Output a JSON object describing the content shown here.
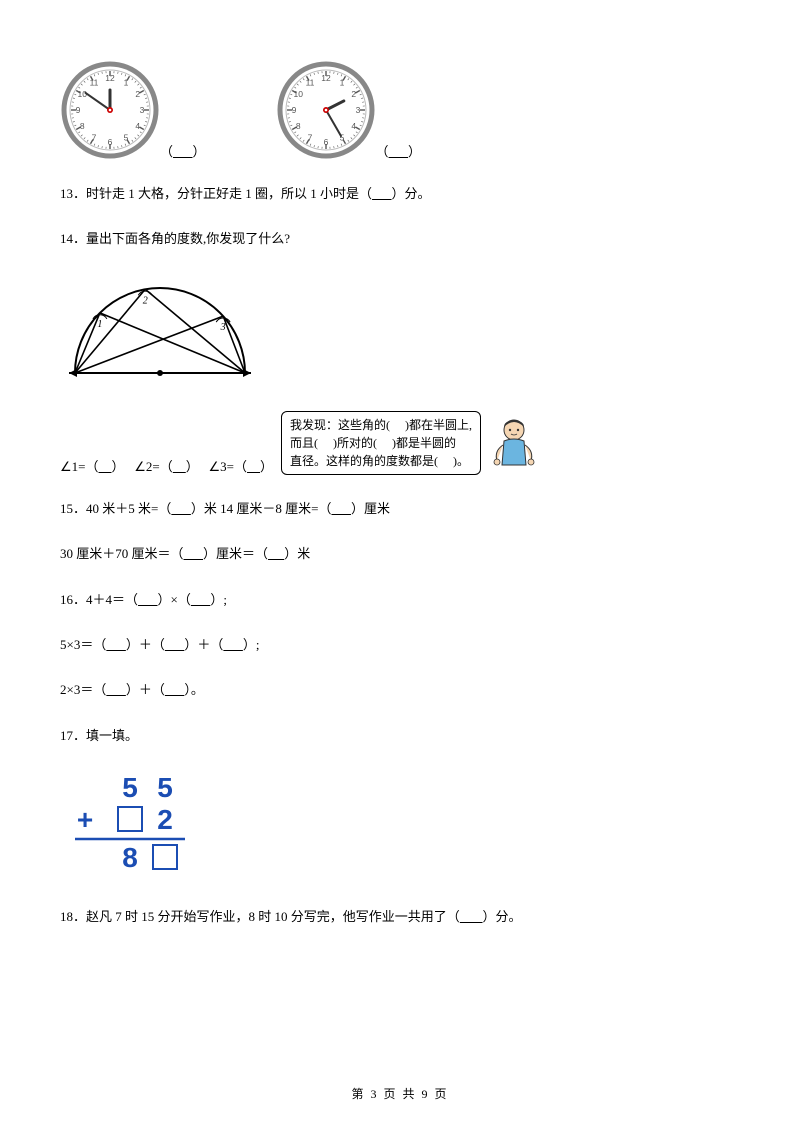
{
  "clocks": {
    "clock1": {
      "numbers": [
        "12",
        "1",
        "2",
        "3",
        "4",
        "5",
        "6",
        "7",
        "8",
        "9",
        "10",
        "11"
      ],
      "hour_angle": 0,
      "minute_angle": -55,
      "outer_color": "#888888",
      "face_color": "#ffffff",
      "number_color": "#555555",
      "hand_color": "#333333",
      "center_color": "#cc0000"
    },
    "clock2": {
      "numbers": [
        "12",
        "1",
        "2",
        "3",
        "4",
        "5",
        "6",
        "7",
        "8",
        "9",
        "10",
        "11"
      ],
      "hour_angle": 63,
      "minute_angle": 150,
      "outer_color": "#888888",
      "face_color": "#ffffff",
      "number_color": "#555555",
      "hand_color": "#333333",
      "center_color": "#cc0000"
    },
    "label1_prefix": "（",
    "label1_blank": "      ",
    "label1_suffix": "）",
    "label2_prefix": "（",
    "label2_blank": "      ",
    "label2_suffix": "）"
  },
  "q13": {
    "num": "13",
    "dot": "．",
    "text_a": "时针走 1 大格，分针正好走 1 圈，所以 1 小时是（",
    "blank": "      ",
    "text_b": "）分。"
  },
  "q14": {
    "num": "14",
    "dot": "．",
    "text": "量出下面各角的度数,你发现了什么?"
  },
  "semicircle": {
    "angle_labels": [
      "1",
      "2",
      "3"
    ],
    "stroke_color": "#000000",
    "stroke_width": 2,
    "arc_label_stroke": "#000000"
  },
  "callout": {
    "line1_a": "我发现：这些角的(",
    "line1_b": ")都在半圆上,",
    "line2_a": "而且(",
    "line2_b": ")所对的(",
    "line2_c": ")都是半圆的",
    "line3_a": "直径。这样的角的度数都是(",
    "line3_b": ")。"
  },
  "angles_line": {
    "a1_label": "∠1=（",
    "a1_blank": "    ",
    "a1_close": "）",
    "a2_label": "∠2=（",
    "a2_blank": "    ",
    "a2_close": "）",
    "a3_label": "∠3=（",
    "a3_blank": "    ",
    "a3_close": "）"
  },
  "q15": {
    "num": "15",
    "dot": "．",
    "text1": "40 米＋5 米=（",
    "blank1": "      ",
    "text2": "）米   14 厘米－8 厘米=（",
    "blank2": "      ",
    "text3": "）厘米"
  },
  "q15b": {
    "text1": "30 厘米＋70 厘米＝（",
    "blank1": "      ",
    "text2": "）厘米＝（",
    "blank2": "     ",
    "text3": "）米"
  },
  "q16": {
    "num": "16",
    "dot": "．",
    "text1": "4＋4＝（",
    "blank1": "      ",
    "text2": "）×（",
    "blank2": "      ",
    "text3": "）;"
  },
  "q16b": {
    "text1": "5×3＝（",
    "blank1": "      ",
    "text2": "）＋（",
    "blank2": "      ",
    "text3": "）＋（",
    "blank3": "      ",
    "text4": "）;"
  },
  "q16c": {
    "text1": "2×3＝（",
    "blank1": "      ",
    "text2": "）＋（",
    "blank2": "      ",
    "text3": "）。"
  },
  "q17": {
    "num": "17",
    "dot": "．",
    "text": "填一填。"
  },
  "addition": {
    "top_digits": [
      "5",
      "5"
    ],
    "bottom_digits": [
      "",
      "2"
    ],
    "result_digits": [
      "8",
      ""
    ],
    "plus_sign": "+",
    "digit_color": "#1b4db3",
    "box_color": "#1b4db3",
    "line_color": "#1b4db3",
    "digit_fontsize": 28
  },
  "q18": {
    "num": "18",
    "dot": "．",
    "text1": "赵凡 7 时 15 分开始写作业，8 时 10 分写完，他写作业一共用了（",
    "blank": "       ",
    "text2": "）分。"
  },
  "footer": {
    "text": "第 3 页 共 9 页"
  }
}
